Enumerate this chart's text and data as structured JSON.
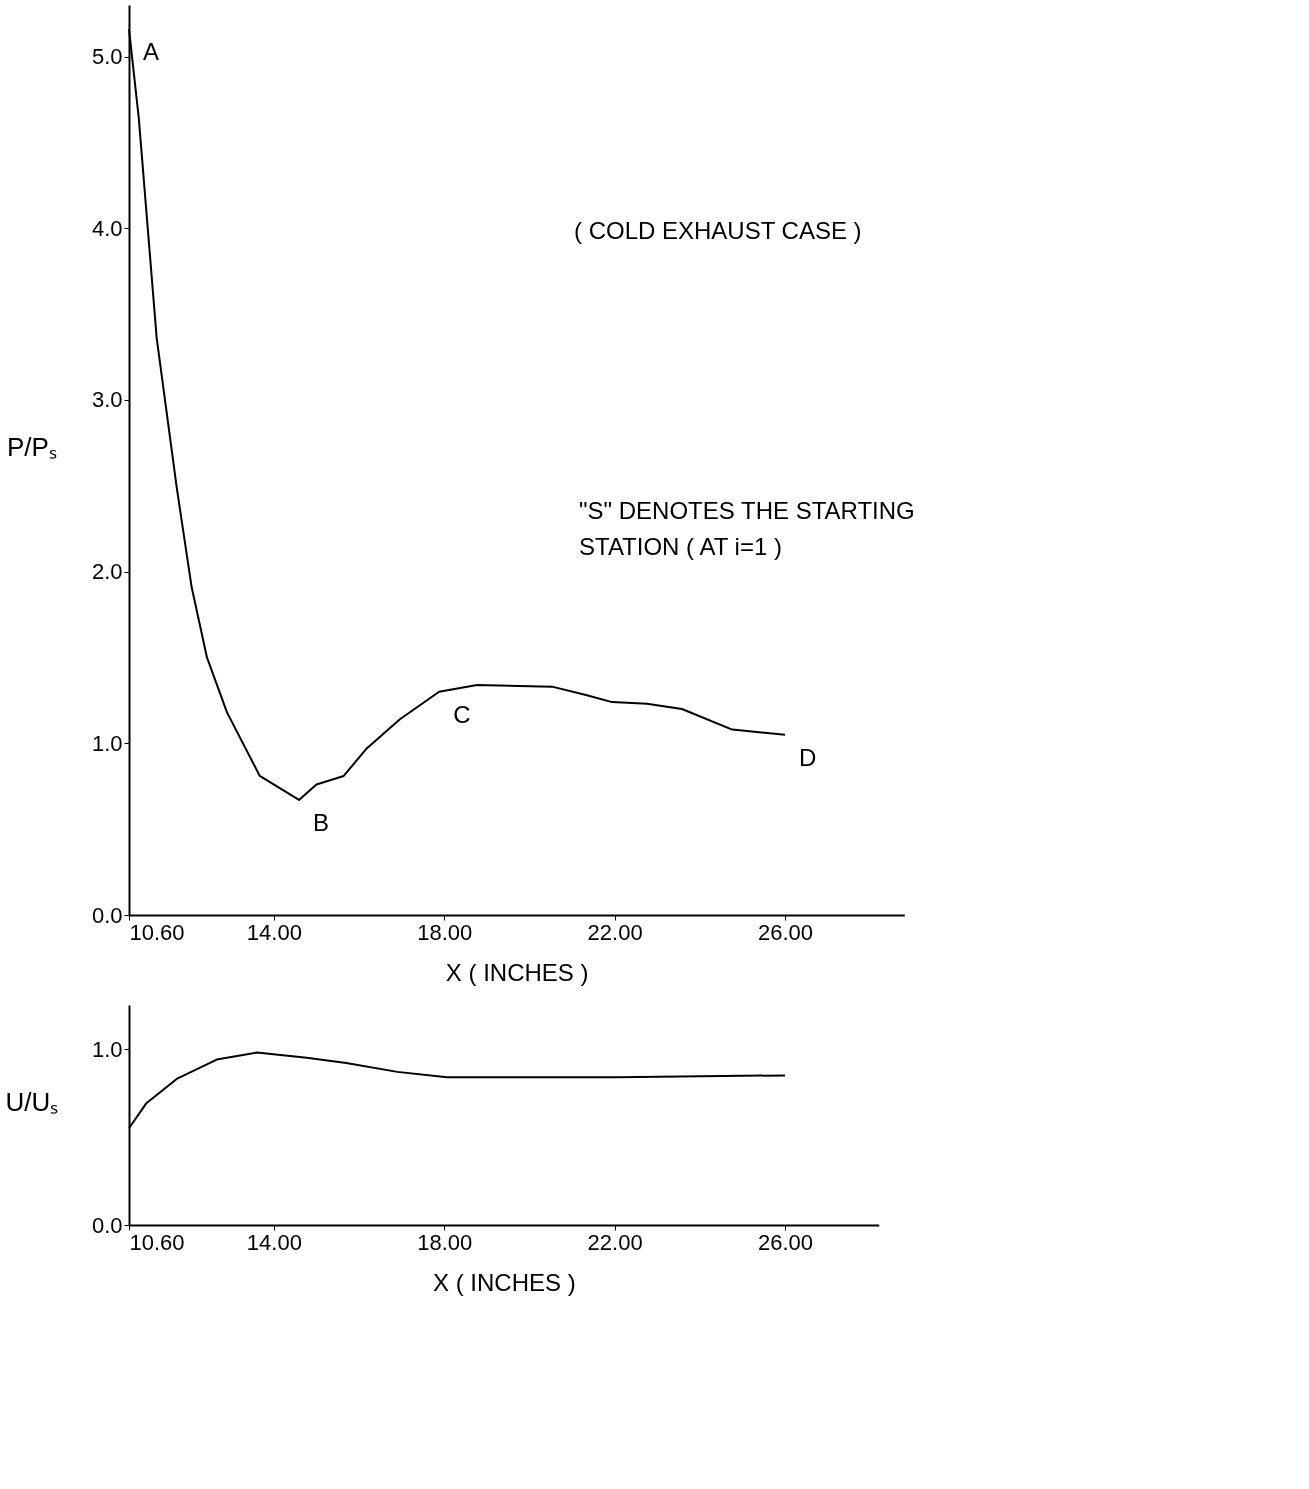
{
  "chart_data": [
    {
      "type": "line",
      "xlabel": "X  ( INCHES )",
      "ylabel": "P/Pₛ",
      "xlim": [
        10.6,
        28.8
      ],
      "ylim": [
        0,
        5.3
      ],
      "xticks": [
        {
          "value": 10.6,
          "label": "10.60"
        },
        {
          "value": 14,
          "label": "14.00"
        },
        {
          "value": 18,
          "label": "18.00"
        },
        {
          "value": 22,
          "label": "22.00"
        },
        {
          "value": 26,
          "label": "26.00"
        }
      ],
      "yticks": [
        {
          "value": 0,
          "label": "0.0"
        },
        {
          "value": 1,
          "label": "1.0"
        },
        {
          "value": 2,
          "label": "2.0"
        },
        {
          "value": 3,
          "label": "3.0"
        },
        {
          "value": 4,
          "label": "4.0"
        },
        {
          "value": 5,
          "label": "5.0"
        }
      ],
      "series": [
        {
          "color": "#000000",
          "x": [
            10.6,
            10.83,
            11.25,
            11.72,
            12.07,
            12.43,
            12.9,
            13.67,
            14.59,
            15.0,
            15.64,
            16.18,
            16.96,
            17.88,
            18.77,
            20.53,
            21.35,
            21.94,
            22.76,
            23.58,
            24.76,
            26.0
          ],
          "values": [
            5.16,
            4.64,
            3.36,
            2.49,
            1.91,
            1.5,
            1.18,
            0.81,
            0.67,
            0.76,
            0.81,
            0.97,
            1.14,
            1.3,
            1.34,
            1.33,
            1.28,
            1.24,
            1.23,
            1.2,
            1.08,
            1.05
          ]
        }
      ],
      "annotations": [
        {
          "text": "A",
          "x": 10.6,
          "y": 5.16
        },
        {
          "text": "B",
          "x": 14.59,
          "y": 0.67
        },
        {
          "text": "C",
          "x": 17.88,
          "y": 1.3
        },
        {
          "text": "D",
          "x": 26.0,
          "y": 1.05
        },
        "( COLD EXHAUST   CASE )",
        "\"S\"  DENOTES  THE  STARTING\nSTATION  ( AT i=1  )"
      ]
    },
    {
      "type": "line",
      "xlabel": "X  ( INCHES )",
      "ylabel": "U/Uₛ",
      "xlim": [
        10.6,
        28.2
      ],
      "ylim": [
        0,
        1.25
      ],
      "xticks": [
        {
          "value": 10.6,
          "label": "10.60"
        },
        {
          "value": 14,
          "label": "14.00"
        },
        {
          "value": 18,
          "label": "18.00"
        },
        {
          "value": 22,
          "label": "22.00"
        },
        {
          "value": 26,
          "label": "26.00"
        }
      ],
      "yticks": [
        {
          "value": 0,
          "label": "0.0"
        },
        {
          "value": 1,
          "label": "1.0"
        }
      ],
      "series": [
        {
          "color": "#000000",
          "x": [
            10.6,
            11.0,
            11.72,
            12.66,
            13.6,
            14.77,
            15.7,
            16.9,
            18.06,
            19.7,
            22.06,
            26.0
          ],
          "values": [
            0.55,
            0.69,
            0.83,
            0.94,
            0.98,
            0.95,
            0.92,
            0.87,
            0.84,
            0.84,
            0.84,
            0.85
          ]
        }
      ]
    }
  ]
}
